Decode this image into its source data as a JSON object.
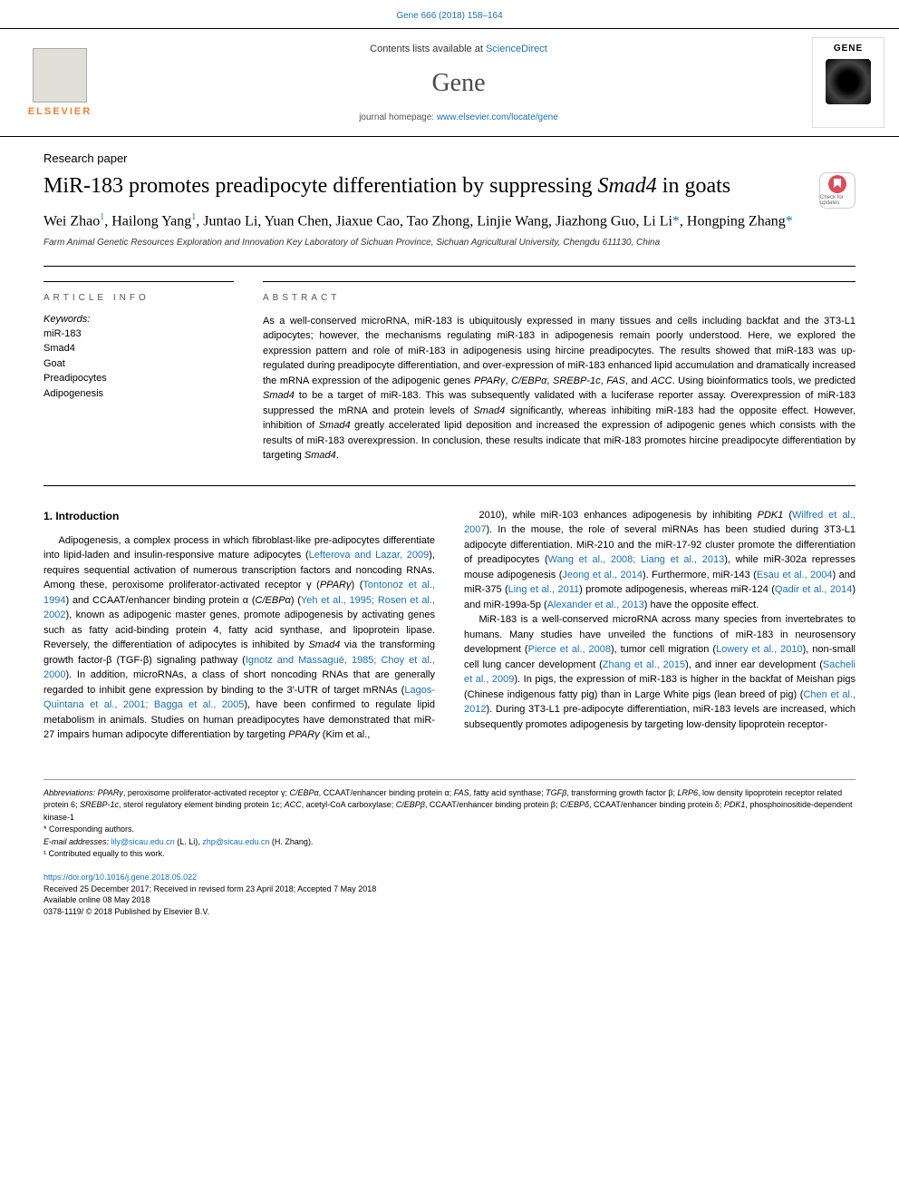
{
  "colors": {
    "link": "#1a6fb5",
    "text": "#000000",
    "muted": "#555555",
    "orange": "#f47d30",
    "check_badge": "#d94d5c"
  },
  "typography": {
    "title_fontsize": 24,
    "title_family": "Georgia, serif",
    "journal_fontsize": 28,
    "body_fontsize": 11,
    "abstract_fontsize": 11
  },
  "header": {
    "citation": "Gene 666 (2018) 158–164",
    "contents_prefix": "Contents lists available at ",
    "contents_link": "ScienceDirect",
    "journal": "Gene",
    "homepage_prefix": "journal homepage: ",
    "homepage_link": "www.elsevier.com/locate/gene",
    "logo_left_text": "ELSEVIER",
    "logo_right_text": "GENE"
  },
  "paper": {
    "type": "Research paper",
    "title_pre": "MiR-183 promotes preadipocyte differentiation by suppressing ",
    "title_italic": "Smad4",
    "title_post": " in goats",
    "check_updates": "Check for updates",
    "authors_html": "Wei Zhao<sup>1</sup>, Hailong Yang<sup>1</sup>, Juntao Li, Yuan Chen, Jiaxue Cao, Tao Zhong, Linjie Wang, Jiazhong Guo, Li Li<span class='star'>*</span>, Hongping Zhang<span class='star'>*</span>",
    "affiliation": "Farm Animal Genetic Resources Exploration and Innovation Key Laboratory of Sichuan Province, Sichuan Agricultural University, Chengdu 611130, China"
  },
  "info": {
    "head": "ARTICLE INFO",
    "keywords_label": "Keywords:",
    "keywords": [
      "miR-183",
      "Smad4",
      "Goat",
      "Preadipocytes",
      "Adipogenesis"
    ]
  },
  "abstract": {
    "head": "ABSTRACT",
    "text": "As a well-conserved microRNA, miR-183 is ubiquitously expressed in many tissues and cells including backfat and the 3T3-L1 adipocytes; however, the mechanisms regulating miR-183 in adipogenesis remain poorly understood. Here, we explored the expression pattern and role of miR-183 in adipogenesis using hircine preadipocytes. The results showed that miR-183 was up-regulated during preadipocyte differentiation, and over-expression of miR-183 enhanced lipid accumulation and dramatically increased the mRNA expression of the adipogenic genes PPARγ, C/EBPα, SREBP-1c, FAS, and ACC. Using bioinformatics tools, we predicted Smad4 to be a target of miR-183. This was subsequently validated with a luciferase reporter assay. Overexpression of miR-183 suppressed the mRNA and protein levels of Smad4 significantly, whereas inhibiting miR-183 had the opposite effect. However, inhibition of Smad4 greatly accelerated lipid deposition and increased the expression of adipogenic genes which consists with the results of miR-183 overexpression. In conclusion, these results indicate that miR-183 promotes hircine preadipocyte differentiation by targeting Smad4."
  },
  "body": {
    "section_head": "1. Introduction",
    "col1_p1": "Adipogenesis, a complex process in which fibroblast-like pre-adipocytes differentiate into lipid-laden and insulin-responsive mature adipocytes (Lefterova and Lazar, 2009), requires sequential activation of numerous transcription factors and noncoding RNAs. Among these, peroxisome proliferator-activated receptor γ (PPARγ) (Tontonoz et al., 1994) and CCAAT/enhancer binding protein α (C/EBPα) (Yeh et al., 1995; Rosen et al., 2002), known as adipogenic master genes, promote adipogenesis by activating genes such as fatty acid-binding protein 4, fatty acid synthase, and lipoprotein lipase. Reversely, the differentiation of adipocytes is inhibited by Smad4 via the transforming growth factor-β (TGF-β) signaling pathway (Ignotz and Massagué, 1985; Choy et al., 2000). In addition, microRNAs, a class of short noncoding RNAs that are generally regarded to inhibit gene expression by binding to the 3′-UTR of target mRNAs (Lagos-Quintana et al., 2001; Bagga et al., 2005), have been confirmed to regulate lipid metabolism in animals. Studies on human preadipocytes have demonstrated that miR-27 impairs human adipocyte differentiation by targeting PPARγ (Kim et al.,",
    "col2_p1": "2010), while miR-103 enhances adipogenesis by inhibiting PDK1 (Wilfred et al., 2007). In the mouse, the role of several miRNAs has been studied during 3T3-L1 adipocyte differentiation. MiR-210 and the miR-17-92 cluster promote the differentiation of preadipocytes (Wang et al., 2008; Liang et al., 2013), while miR-302a represses mouse adipogenesis (Jeong et al., 2014). Furthermore, miR-143 (Esau et al., 2004) and miR-375 (Ling et al., 2011) promote adipogenesis, whereas miR-124 (Qadir et al., 2014) and miR-199a-5p (Alexander et al., 2013) have the opposite effect.",
    "col2_p2": "MiR-183 is a well-conserved microRNA across many species from invertebrates to humans. Many studies have unveiled the functions of miR-183 in neurosensory development (Pierce et al., 2008), tumor cell migration (Lowery et al., 2010), non-small cell lung cancer development (Zhang et al., 2015), and inner ear development (Sacheli et al., 2009). In pigs, the expression of miR-183 is higher in the backfat of Meishan pigs (Chinese indigenous fatty pig) than in Large White pigs (lean breed of pig) (Chen et al., 2012). During 3T3-L1 pre-adipocyte differentiation, miR-183 levels are increased, which subsequently promotes adipogenesis by targeting low-density lipoprotein receptor-"
  },
  "footer": {
    "abbrev_label": "Abbreviations:",
    "abbrev_text": " PPARγ, peroxisome proliferator-activated receptor γ; C/EBPα, CCAAT/enhancer binding protein α; FAS, fatty acid synthase; TGFβ, transforming growth factor β; LRP6, low density lipoprotein receptor related protein 6; SREBP-1c, sterol regulatory element binding protein 1c; ACC, acetyl-CoA carboxylase; C/EBPβ, CCAAT/enhancer binding protein β; C/EBPδ, CCAAT/enhancer binding protein δ; PDK1, phosphoinositide-dependent kinase-1",
    "corr": "* Corresponding authors.",
    "email_label": "E-mail addresses:",
    "email1": "lily@sicau.edu.cn",
    "email1_name": " (L. Li), ",
    "email2": "zhp@sicau.edu.cn",
    "email2_name": " (H. Zhang).",
    "contrib": "¹ Contributed equally to this work.",
    "doi": "https://doi.org/10.1016/j.gene.2018.05.022",
    "received": "Received 25 December 2017; Received in revised form 23 April 2018; Accepted 7 May 2018",
    "available": "Available online 08 May 2018",
    "copyright": "0378-1119/ © 2018 Published by Elsevier B.V."
  }
}
